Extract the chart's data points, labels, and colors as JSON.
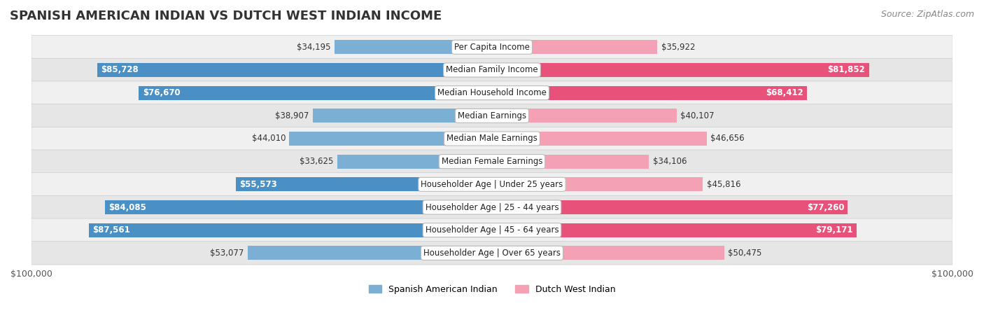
{
  "title": "SPANISH AMERICAN INDIAN VS DUTCH WEST INDIAN INCOME",
  "source": "Source: ZipAtlas.com",
  "categories": [
    "Per Capita Income",
    "Median Family Income",
    "Median Household Income",
    "Median Earnings",
    "Median Male Earnings",
    "Median Female Earnings",
    "Householder Age | Under 25 years",
    "Householder Age | 25 - 44 years",
    "Householder Age | 45 - 64 years",
    "Householder Age | Over 65 years"
  ],
  "spanish_values": [
    34195,
    85728,
    76670,
    38907,
    44010,
    33625,
    55573,
    84085,
    87561,
    53077
  ],
  "dutch_values": [
    35922,
    81852,
    68412,
    40107,
    46656,
    34106,
    45816,
    77260,
    79171,
    50475
  ],
  "spanish_labels": [
    "$34,195",
    "$85,728",
    "$76,670",
    "$38,907",
    "$44,010",
    "$33,625",
    "$55,573",
    "$84,085",
    "$87,561",
    "$53,077"
  ],
  "dutch_labels": [
    "$35,922",
    "$81,852",
    "$68,412",
    "$40,107",
    "$46,656",
    "$34,106",
    "$45,816",
    "$77,260",
    "$79,171",
    "$50,475"
  ],
  "spanish_color": "#7bafd4",
  "spanish_color_dark": "#4a90c4",
  "dutch_color": "#f4a0b5",
  "dutch_color_dark": "#e8527a",
  "max_value": 100000,
  "legend_spanish": "Spanish American Indian",
  "legend_dutch": "Dutch West Indian",
  "bg_color": "#ffffff",
  "row_bg_light": "#efefef",
  "row_bg_dark": "#e2e2e2",
  "title_fontsize": 13,
  "source_fontsize": 9,
  "label_fontsize": 8.5,
  "category_fontsize": 8.5,
  "inside_threshold": 55000
}
